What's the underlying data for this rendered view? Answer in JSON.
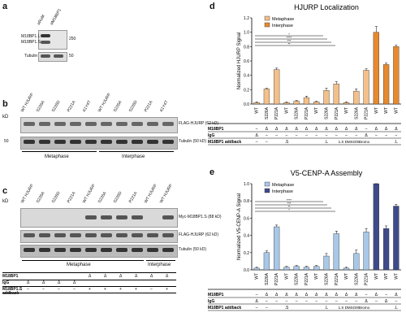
{
  "panel_a": {
    "label": "a",
    "lane_labels": [
      "αRuM",
      "αM18BP1"
    ],
    "row_labels": [
      "M18BP1.L",
      "M18BP1.S",
      "Tubulin"
    ],
    "kd": [
      "250",
      "50"
    ]
  },
  "panel_b": {
    "label": "b",
    "kd_header": "kD",
    "lane_labels": [
      "WT HJURP",
      "S226A",
      "S226D",
      "P221A",
      "A1Y4T",
      "WT HJURP",
      "S226A",
      "S226D",
      "P221A",
      "A1Y4T"
    ],
    "row_labels": [
      "FLAG-HJURP (62 kD)",
      "Tubulin (50 kD)"
    ],
    "kd": [
      "50"
    ],
    "groups": [
      "Metaphase",
      "Interphase"
    ]
  },
  "panel_c": {
    "label": "c",
    "kd_header": "kD",
    "lane_labels": [
      "WT HJURP",
      "S226A",
      "S226D",
      "P221A",
      "WT HJURP",
      "S226A",
      "S226D",
      "P221A",
      "WT HJURP",
      "WT HJURP"
    ],
    "row_labels": [
      "Myc-M18BP1.S (88 kD)",
      "FLAG-HJURP (62 kD)",
      "Tubulin (50 kD)"
    ],
    "groups": [
      "Metaphase",
      "Interphase"
    ],
    "table_rows": [
      {
        "label": "M18BP1",
        "cells": [
          "",
          "",
          "",
          "",
          "Δ",
          "Δ",
          "Δ",
          "Δ",
          "Δ",
          "Δ"
        ]
      },
      {
        "label": "IgG",
        "cells": [
          "Δ",
          "Δ",
          "Δ",
          "Δ",
          "",
          "",
          "",
          "",
          "",
          ""
        ]
      },
      {
        "label": "M18BP1.S addback",
        "cells": [
          "–",
          "–",
          "–",
          "–",
          "+",
          "+",
          "+",
          "+",
          "–",
          "+"
        ]
      }
    ]
  },
  "panel_d": {
    "label": "d",
    "title": "HJURP Localization",
    "ylabel": "Normalized HJURP Signal",
    "legend": [
      "Metaphase",
      "Interphase"
    ],
    "stars": [
      "*",
      "****",
      "***",
      "**"
    ],
    "table_rows": [
      {
        "label": "M18BP1",
        "cells": [
          "–",
          "Δ",
          "Δ",
          "Δ",
          "Δ",
          "Δ",
          "Δ",
          "Δ",
          "Δ",
          "Δ",
          "Δ",
          "–",
          "Δ",
          "Δ",
          "Δ"
        ]
      },
      {
        "label": "IgG",
        "cells": [
          "Δ",
          "–",
          "–",
          "–",
          "–",
          "–",
          "–",
          "–",
          "–",
          "–",
          "–",
          "Δ",
          "–",
          "–",
          "–"
        ]
      },
      {
        "label": "M18BP1 addback",
        "cells": [
          "–",
          "–",
          "",
          ".S",
          "",
          "",
          "",
          ".L",
          "",
          "",
          "",
          "",
          "",
          "",
          ".L"
        ]
      }
    ],
    "addback_extra": "1.S DMSO/8Bromo",
    "chart_data": {
      "type": "bar",
      "categories": [
        "WT",
        "S226A",
        "P221A",
        "WT",
        "S226A",
        "P221A",
        "WT",
        "S226A",
        "P221A",
        "WT",
        "S226A",
        "P221A",
        "WT",
        "WT",
        "WT"
      ],
      "ylim": [
        0,
        1.2
      ],
      "yticks": [
        0.0,
        0.2,
        0.4,
        0.6,
        0.8,
        1.0,
        1.2
      ],
      "series": [
        {
          "name": "Metaphase",
          "values": [
            0.02,
            0.21,
            0.48,
            0.02,
            0.04,
            0.09,
            0.03,
            0.19,
            0.28,
            0.02,
            0.18,
            0.47,
            null,
            null,
            null
          ]
        },
        {
          "name": "Interphase",
          "values": [
            null,
            null,
            null,
            null,
            null,
            null,
            null,
            null,
            null,
            null,
            null,
            null,
            1.0,
            0.55,
            0.8
          ]
        }
      ]
    }
  },
  "panel_e": {
    "label": "e",
    "title": "V5-CENP-A Assembly",
    "ylabel": "Normalized V5-CENP-A Signal",
    "legend": [
      "Metaphase",
      "Interphase"
    ],
    "stars": [
      "****",
      "***",
      "**",
      "*"
    ],
    "table_rows": [
      {
        "label": "M18BP1",
        "cells": [
          "–",
          "Δ",
          "Δ",
          "Δ",
          "Δ",
          "Δ",
          "Δ",
          "Δ",
          "Δ",
          "Δ",
          "Δ",
          "–",
          "Δ",
          "–",
          "Δ"
        ]
      },
      {
        "label": "IgG",
        "cells": [
          "Δ",
          "–",
          "–",
          "–",
          "–",
          "–",
          "–",
          "–",
          "–",
          "–",
          "–",
          "Δ",
          "–",
          "Δ",
          "–"
        ]
      },
      {
        "label": "M18BP1 addback",
        "cells": [
          "–",
          "–",
          "",
          ".S",
          "",
          "",
          "",
          ".L",
          "",
          "",
          "",
          "",
          "",
          "",
          ".L"
        ]
      }
    ],
    "addback_extra": "1.S DMSO/8Bromo",
    "chart_data": {
      "type": "bar",
      "categories": [
        "WT",
        "S226A",
        "P221A",
        "WT",
        "S226A",
        "P221A",
        "WT",
        "S226A",
        "P221A",
        "WT",
        "S226A",
        "P221A",
        "WT",
        "WT",
        "WT"
      ],
      "ylim": [
        0,
        1.0
      ],
      "yticks": [
        0.0,
        0.2,
        0.4,
        0.6,
        0.8,
        1.0
      ],
      "series": [
        {
          "name": "Metaphase",
          "values": [
            0.02,
            0.2,
            0.5,
            0.03,
            0.04,
            0.03,
            0.04,
            0.16,
            0.42,
            0.02,
            0.19,
            0.44,
            null,
            null,
            null
          ]
        },
        {
          "name": "Interphase",
          "values": [
            null,
            null,
            null,
            null,
            null,
            null,
            null,
            null,
            null,
            null,
            null,
            null,
            1.0,
            0.48,
            0.74
          ]
        }
      ]
    }
  },
  "colors": {
    "metaphase_d": "#f4c08a",
    "interphase_d": "#e8892e",
    "metaphase_e": "#a9c8e8",
    "interphase_e": "#3e4a8a"
  }
}
